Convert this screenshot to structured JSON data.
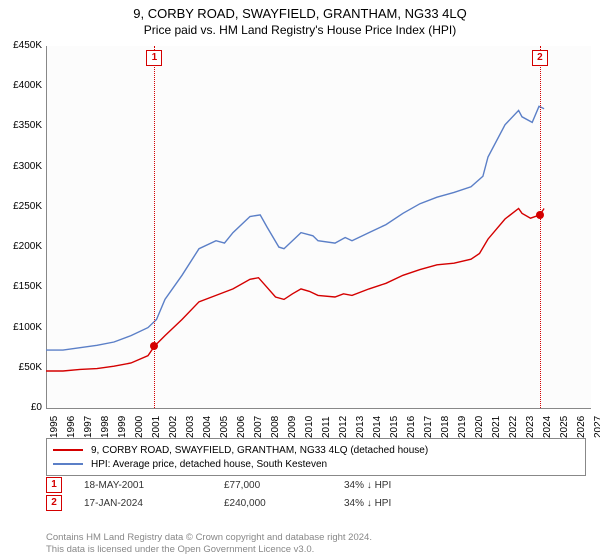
{
  "title": "9, CORBY ROAD, SWAYFIELD, GRANTHAM, NG33 4LQ",
  "subtitle": "Price paid vs. HM Land Registry's House Price Index (HPI)",
  "chart": {
    "type": "line",
    "background_color": "#fcfcfc",
    "grid_color": "#eeeeee",
    "axis_color": "#888888",
    "ylim": [
      0,
      450000
    ],
    "ytick_step": 50000,
    "yticks": [
      "£0",
      "£50K",
      "£100K",
      "£150K",
      "£200K",
      "£250K",
      "£300K",
      "£350K",
      "£400K",
      "£450K"
    ],
    "xlim": [
      1995,
      2027
    ],
    "xticks": [
      "1995",
      "1996",
      "1997",
      "1998",
      "1999",
      "2000",
      "2001",
      "2002",
      "2003",
      "2004",
      "2005",
      "2006",
      "2007",
      "2008",
      "2009",
      "2010",
      "2011",
      "2012",
      "2013",
      "2014",
      "2015",
      "2016",
      "2017",
      "2018",
      "2019",
      "2020",
      "2021",
      "2022",
      "2023",
      "2024",
      "2025",
      "2026",
      "2027"
    ],
    "series": [
      {
        "name": "property",
        "label": "9, CORBY ROAD, SWAYFIELD, GRANTHAM, NG33 4LQ (detached house)",
        "color": "#d40000",
        "line_width": 1.4,
        "points": [
          [
            1995,
            46000
          ],
          [
            1996,
            46000
          ],
          [
            1997,
            48000
          ],
          [
            1998,
            49000
          ],
          [
            1999,
            52000
          ],
          [
            2000,
            56000
          ],
          [
            2001,
            65000
          ],
          [
            2001.38,
            77000
          ],
          [
            2002,
            90000
          ],
          [
            2003,
            110000
          ],
          [
            2004,
            132000
          ],
          [
            2005,
            140000
          ],
          [
            2006,
            148000
          ],
          [
            2007,
            160000
          ],
          [
            2007.5,
            162000
          ],
          [
            2008,
            150000
          ],
          [
            2008.5,
            138000
          ],
          [
            2009,
            135000
          ],
          [
            2009.5,
            142000
          ],
          [
            2010,
            148000
          ],
          [
            2010.5,
            145000
          ],
          [
            2011,
            140000
          ],
          [
            2012,
            138000
          ],
          [
            2012.5,
            142000
          ],
          [
            2013,
            140000
          ],
          [
            2014,
            148000
          ],
          [
            2015,
            155000
          ],
          [
            2016,
            165000
          ],
          [
            2017,
            172000
          ],
          [
            2018,
            178000
          ],
          [
            2019,
            180000
          ],
          [
            2020,
            185000
          ],
          [
            2020.5,
            192000
          ],
          [
            2021,
            210000
          ],
          [
            2022,
            235000
          ],
          [
            2022.8,
            248000
          ],
          [
            2023,
            242000
          ],
          [
            2023.5,
            236000
          ],
          [
            2024.05,
            240000
          ],
          [
            2024.3,
            248000
          ]
        ]
      },
      {
        "name": "hpi",
        "label": "HPI: Average price, detached house, South Kesteven",
        "color": "#5b7fc7",
        "line_width": 1.4,
        "points": [
          [
            1995,
            72000
          ],
          [
            1996,
            72000
          ],
          [
            1997,
            75000
          ],
          [
            1998,
            78000
          ],
          [
            1999,
            82000
          ],
          [
            2000,
            90000
          ],
          [
            2001,
            100000
          ],
          [
            2001.5,
            110000
          ],
          [
            2002,
            135000
          ],
          [
            2003,
            165000
          ],
          [
            2004,
            198000
          ],
          [
            2005,
            208000
          ],
          [
            2005.5,
            205000
          ],
          [
            2006,
            218000
          ],
          [
            2007,
            238000
          ],
          [
            2007.6,
            240000
          ],
          [
            2008,
            225000
          ],
          [
            2008.7,
            200000
          ],
          [
            2009,
            198000
          ],
          [
            2009.7,
            212000
          ],
          [
            2010,
            218000
          ],
          [
            2010.7,
            214000
          ],
          [
            2011,
            208000
          ],
          [
            2012,
            205000
          ],
          [
            2012.6,
            212000
          ],
          [
            2013,
            208000
          ],
          [
            2014,
            218000
          ],
          [
            2015,
            228000
          ],
          [
            2016,
            242000
          ],
          [
            2017,
            254000
          ],
          [
            2018,
            262000
          ],
          [
            2019,
            268000
          ],
          [
            2020,
            275000
          ],
          [
            2020.7,
            288000
          ],
          [
            2021,
            312000
          ],
          [
            2022,
            352000
          ],
          [
            2022.8,
            370000
          ],
          [
            2023,
            362000
          ],
          [
            2023.6,
            355000
          ],
          [
            2024,
            375000
          ],
          [
            2024.3,
            372000
          ]
        ]
      }
    ],
    "markers": [
      {
        "id": "1",
        "x": 2001.38,
        "y": 77000,
        "color": "#d40000"
      },
      {
        "id": "2",
        "x": 2024.05,
        "y": 240000,
        "color": "#d40000"
      }
    ]
  },
  "transactions": [
    {
      "id": "1",
      "date": "18-MAY-2001",
      "price": "£77,000",
      "delta": "34% ↓ HPI",
      "color": "#d40000"
    },
    {
      "id": "2",
      "date": "17-JAN-2024",
      "price": "£240,000",
      "delta": "34% ↓ HPI",
      "color": "#d40000"
    }
  ],
  "footer_line1": "Contains HM Land Registry data © Crown copyright and database right 2024.",
  "footer_line2": "This data is licensed under the Open Government Licence v3.0.",
  "columns": {
    "date_w": 140,
    "price_w": 120,
    "delta_w": 120
  }
}
